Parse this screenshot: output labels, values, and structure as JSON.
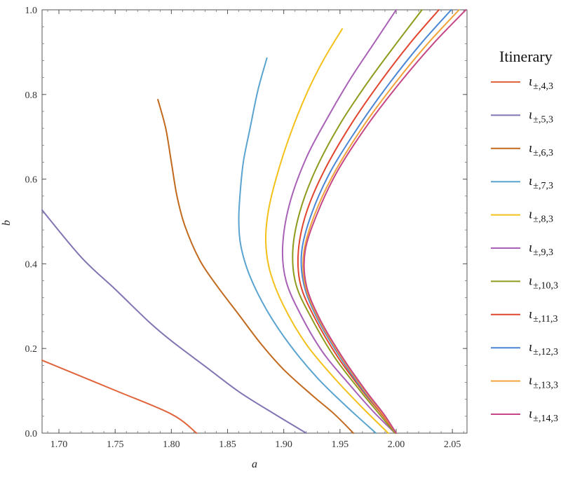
{
  "chart_data": {
    "type": "line",
    "title": "",
    "xlabel": "a",
    "ylabel": "b",
    "xlim": [
      1.685,
      2.063
    ],
    "ylim": [
      0,
      1.0
    ],
    "x_ticks": [
      "1.70",
      "1.75",
      "1.80",
      "1.85",
      "1.90",
      "1.95",
      "2.00",
      "2.05"
    ],
    "y_ticks": [
      "0.0",
      "0.2",
      "0.4",
      "0.6",
      "0.8",
      "1.0"
    ],
    "grid": false,
    "legend": {
      "title": "Itinerary",
      "placement": "right"
    },
    "series": [
      {
        "name": "ι±,4,3",
        "base": "ι",
        "sub": "±,4,3",
        "color": "#e0643c",
        "points": [
          [
            1.685,
            0.172
          ],
          [
            1.75,
            0.101
          ],
          [
            1.8,
            0.045
          ],
          [
            1.8225,
            0.0
          ]
        ]
      },
      {
        "name": "ι±,5,3",
        "base": "ι",
        "sub": "±,5,3",
        "color": "#8374b3",
        "points": [
          [
            1.685,
            0.527
          ],
          [
            1.72,
            0.415
          ],
          [
            1.75,
            0.34
          ],
          [
            1.78,
            0.263
          ],
          [
            1.8,
            0.218
          ],
          [
            1.83,
            0.158
          ],
          [
            1.86,
            0.098
          ],
          [
            1.89,
            0.048
          ],
          [
            1.92,
            0.0
          ]
        ]
      },
      {
        "name": "ι±,6,3",
        "base": "ι",
        "sub": "±,6,3",
        "color": "#c2691d",
        "points": [
          [
            1.788,
            0.788
          ],
          [
            1.795,
            0.72
          ],
          [
            1.8,
            0.64
          ],
          [
            1.805,
            0.56
          ],
          [
            1.812,
            0.49
          ],
          [
            1.825,
            0.41
          ],
          [
            1.84,
            0.35
          ],
          [
            1.86,
            0.28
          ],
          [
            1.88,
            0.21
          ],
          [
            1.9,
            0.15
          ],
          [
            1.925,
            0.09
          ],
          [
            1.945,
            0.045
          ],
          [
            1.962,
            0.0
          ]
        ]
      },
      {
        "name": "ι±,7,3",
        "base": "ι",
        "sub": "±,7,3",
        "color": "#5aa4cf",
        "points": [
          [
            1.885,
            0.886
          ],
          [
            1.877,
            0.81
          ],
          [
            1.87,
            0.72
          ],
          [
            1.864,
            0.64
          ],
          [
            1.861,
            0.56
          ],
          [
            1.86,
            0.5
          ],
          [
            1.862,
            0.44
          ],
          [
            1.87,
            0.37
          ],
          [
            1.885,
            0.29
          ],
          [
            1.905,
            0.21
          ],
          [
            1.93,
            0.13
          ],
          [
            1.955,
            0.065
          ],
          [
            1.982,
            0.0
          ]
        ]
      },
      {
        "name": "ι±,8,3",
        "base": "ι",
        "sub": "±,8,3",
        "color": "#f3c11a",
        "points": [
          [
            1.952,
            0.955
          ],
          [
            1.935,
            0.88
          ],
          [
            1.92,
            0.8
          ],
          [
            1.905,
            0.7
          ],
          [
            1.893,
            0.6
          ],
          [
            1.886,
            0.52
          ],
          [
            1.884,
            0.45
          ],
          [
            1.888,
            0.38
          ],
          [
            1.9,
            0.3
          ],
          [
            1.92,
            0.21
          ],
          [
            1.945,
            0.13
          ],
          [
            1.97,
            0.06
          ],
          [
            1.993,
            0.0
          ]
        ]
      },
      {
        "name": "ι±,9,3",
        "base": "ι",
        "sub": "±,9,3",
        "color": "#a861b6",
        "points": [
          [
            2.0,
            1.0
          ],
          [
            1.98,
            0.92
          ],
          [
            1.96,
            0.84
          ],
          [
            1.94,
            0.75
          ],
          [
            1.92,
            0.65
          ],
          [
            1.905,
            0.54
          ],
          [
            1.899,
            0.44
          ],
          [
            1.902,
            0.36
          ],
          [
            1.915,
            0.28
          ],
          [
            1.935,
            0.19
          ],
          [
            1.96,
            0.11
          ],
          [
            1.98,
            0.05
          ],
          [
            1.999,
            0.0
          ]
        ]
      },
      {
        "name": "ι±,10,3",
        "base": "ι",
        "sub": "±,10,3",
        "color": "#8f9b1d",
        "points": [
          [
            2.023,
            1.0
          ],
          [
            2.0,
            0.92
          ],
          [
            1.975,
            0.83
          ],
          [
            1.95,
            0.73
          ],
          [
            1.928,
            0.62
          ],
          [
            1.914,
            0.52
          ],
          [
            1.908,
            0.43
          ],
          [
            1.911,
            0.35
          ],
          [
            1.925,
            0.27
          ],
          [
            1.945,
            0.18
          ],
          [
            1.968,
            0.1
          ],
          [
            1.985,
            0.045
          ],
          [
            1.999,
            0.0
          ]
        ]
      },
      {
        "name": "ι±,11,3",
        "base": "ι",
        "sub": "±,11,3",
        "color": "#e2452e",
        "points": [
          [
            2.038,
            1.0
          ],
          [
            2.012,
            0.92
          ],
          [
            1.986,
            0.83
          ],
          [
            1.96,
            0.73
          ],
          [
            1.936,
            0.62
          ],
          [
            1.92,
            0.52
          ],
          [
            1.913,
            0.43
          ],
          [
            1.915,
            0.35
          ],
          [
            1.928,
            0.27
          ],
          [
            1.948,
            0.18
          ],
          [
            1.97,
            0.1
          ],
          [
            1.987,
            0.045
          ],
          [
            2.0,
            0.0
          ]
        ]
      },
      {
        "name": "ι±,12,3",
        "base": "ι",
        "sub": "±,12,3",
        "color": "#4a86d4",
        "points": [
          [
            2.049,
            1.0
          ],
          [
            2.022,
            0.92
          ],
          [
            1.995,
            0.83
          ],
          [
            1.968,
            0.73
          ],
          [
            1.942,
            0.62
          ],
          [
            1.925,
            0.52
          ],
          [
            1.916,
            0.43
          ],
          [
            1.918,
            0.35
          ],
          [
            1.93,
            0.27
          ],
          [
            1.95,
            0.18
          ],
          [
            1.971,
            0.1
          ],
          [
            1.988,
            0.045
          ],
          [
            2.0,
            0.0
          ]
        ]
      },
      {
        "name": "ι±,13,3",
        "base": "ι",
        "sub": "±,13,3",
        "color": "#f2a33a",
        "points": [
          [
            2.056,
            1.0
          ],
          [
            2.028,
            0.92
          ],
          [
            2.0,
            0.83
          ],
          [
            1.972,
            0.73
          ],
          [
            1.946,
            0.62
          ],
          [
            1.928,
            0.52
          ],
          [
            1.918,
            0.43
          ],
          [
            1.919,
            0.35
          ],
          [
            1.931,
            0.27
          ],
          [
            1.951,
            0.18
          ],
          [
            1.972,
            0.1
          ],
          [
            1.988,
            0.045
          ],
          [
            2.0,
            0.0
          ]
        ]
      },
      {
        "name": "ι±,14,3",
        "base": "ι",
        "sub": "±,14,3",
        "color": "#c54786",
        "points": [
          [
            2.062,
            1.0
          ],
          [
            2.033,
            0.92
          ],
          [
            2.004,
            0.83
          ],
          [
            1.975,
            0.73
          ],
          [
            1.948,
            0.62
          ],
          [
            1.93,
            0.52
          ],
          [
            1.919,
            0.43
          ],
          [
            1.92,
            0.35
          ],
          [
            1.932,
            0.27
          ],
          [
            1.952,
            0.18
          ],
          [
            1.973,
            0.1
          ],
          [
            1.989,
            0.045
          ],
          [
            2.0,
            0.0
          ]
        ]
      }
    ]
  }
}
